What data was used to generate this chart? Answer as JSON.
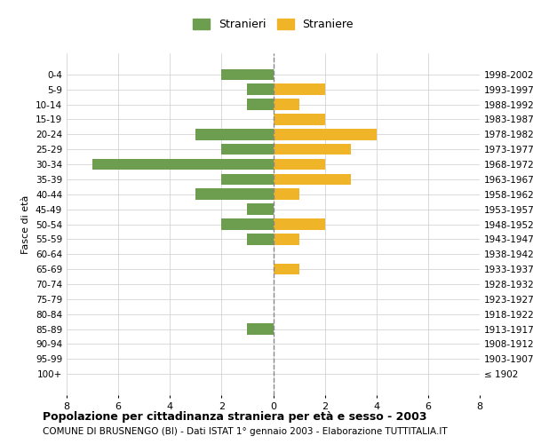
{
  "age_groups": [
    "100+",
    "95-99",
    "90-94",
    "85-89",
    "80-84",
    "75-79",
    "70-74",
    "65-69",
    "60-64",
    "55-59",
    "50-54",
    "45-49",
    "40-44",
    "35-39",
    "30-34",
    "25-29",
    "20-24",
    "15-19",
    "10-14",
    "5-9",
    "0-4"
  ],
  "birth_years": [
    "≤ 1902",
    "1903-1907",
    "1908-1912",
    "1913-1917",
    "1918-1922",
    "1923-1927",
    "1928-1932",
    "1933-1937",
    "1938-1942",
    "1943-1947",
    "1948-1952",
    "1953-1957",
    "1958-1962",
    "1963-1967",
    "1968-1972",
    "1973-1977",
    "1978-1982",
    "1983-1987",
    "1988-1992",
    "1993-1997",
    "1998-2002"
  ],
  "males": [
    0,
    0,
    0,
    1,
    0,
    0,
    0,
    0,
    0,
    1,
    2,
    1,
    3,
    2,
    7,
    2,
    3,
    0,
    1,
    1,
    2
  ],
  "females": [
    0,
    0,
    0,
    0,
    0,
    0,
    0,
    1,
    0,
    1,
    2,
    0,
    1,
    3,
    2,
    3,
    4,
    2,
    1,
    2,
    0
  ],
  "male_color": "#6d9e50",
  "female_color": "#f0b429",
  "title": "Popolazione per cittadinanza straniera per età e sesso - 2003",
  "subtitle": "COMUNE DI BRUSNENGO (BI) - Dati ISTAT 1° gennaio 2003 - Elaborazione TUTTITALIA.IT",
  "ylabel_left": "Fasce di età",
  "xlim": 8,
  "legend_stranieri": "Stranieri",
  "legend_straniere": "Straniere",
  "background_color": "#ffffff",
  "grid_color": "#cccccc"
}
